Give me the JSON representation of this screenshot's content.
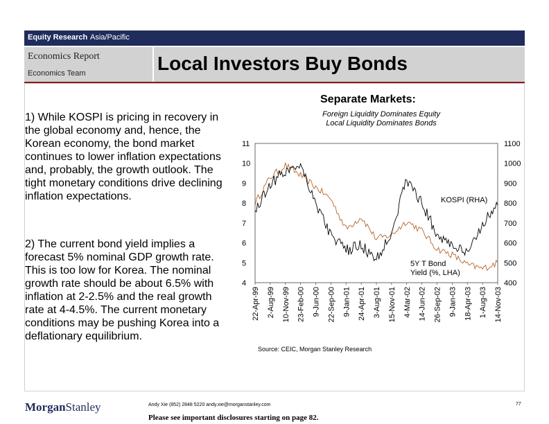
{
  "topbar": {
    "label_bold": "Equity Research",
    "label_region": "Asia/Pacific"
  },
  "header": {
    "report_title": "Economics Report",
    "team": "Economics Team",
    "main_title": "Local Investors Buy Bonds"
  },
  "body": {
    "para1": "1) While KOSPI is pricing in recovery in the global economy and, hence, the Korean economy, the bond market continues to lower inflation expectations and, probably, the growth outlook. The tight monetary conditions drive declining inflation expectations.",
    "para2": "2) The current bond yield implies a forecast 5% nominal GDP growth rate. This is too low for Korea. The nominal growth rate should be about 6.5% with inflation at 2-2.5% and the real growth rate at 4-4.5%. The current monetary conditions may be pushing Korea into a deflationary equilibrium."
  },
  "chart": {
    "title": "Separate Markets:",
    "subtitle_line1": "Foreign Liquidity Dominates Equity",
    "subtitle_line2": "Local Liquidity Dominates Bonds",
    "source": "Source: CEIC, Morgan Stanley Research",
    "colors": {
      "kospi": "#000000",
      "yield": "#b5652a",
      "grid": "#c8c8c8"
    }
  },
  "chart_data": {
    "type": "line",
    "x": [
      "22-Apr-99",
      "2-Aug-99",
      "10-Nov-99",
      "23-Feb-00",
      "9-Jun-00",
      "22-Sep-00",
      "9-Jan-01",
      "24-Apr-01",
      "3-Aug-01",
      "15-Nov-01",
      "4-Mar-02",
      "14-Jun-02",
      "26-Sep-02",
      "9-Jan-03",
      "18-Apr-03",
      "1-Aug-03",
      "14-Nov-03"
    ],
    "left_axis": {
      "label": "5Y T Bond Yield (%, LHA)",
      "ticks": [
        4,
        5,
        6,
        7,
        8,
        9,
        10,
        11
      ],
      "ylim": [
        4,
        11
      ]
    },
    "right_axis": {
      "label": "KOSPI (RHA)",
      "ticks": [
        400,
        500,
        600,
        700,
        800,
        900,
        1000,
        1100
      ],
      "ylim": [
        400,
        1100
      ]
    },
    "series": [
      {
        "name": "KOSPI (RHA)",
        "axis": "right",
        "label_line1": "KOSPI (RHA)",
        "values": [
          760,
          900,
          960,
          1000,
          800,
          640,
          560,
          590,
          510,
          660,
          920,
          800,
          640,
          590,
          540,
          700,
          790
        ]
      },
      {
        "name": "5Y T Bond Yield (%, LHA)",
        "axis": "left",
        "label_line1": "5Y T Bond",
        "label_line2": "Yield (%, LHA)",
        "values": [
          8.0,
          9.3,
          9.9,
          9.4,
          8.8,
          8.2,
          6.7,
          7.3,
          6.2,
          6.4,
          7.1,
          6.6,
          5.7,
          5.4,
          4.9,
          4.7,
          5.0
        ]
      }
    ],
    "grid": false,
    "legend": "inline labels"
  },
  "footer": {
    "logo_a": "Morgan",
    "logo_b": "Stanley",
    "author": "Andy Xie (852) 2848 5220 andy.xie@morganstanley.com",
    "disclosure": "Please see important disclosures starting on page 82.",
    "page": "77"
  }
}
